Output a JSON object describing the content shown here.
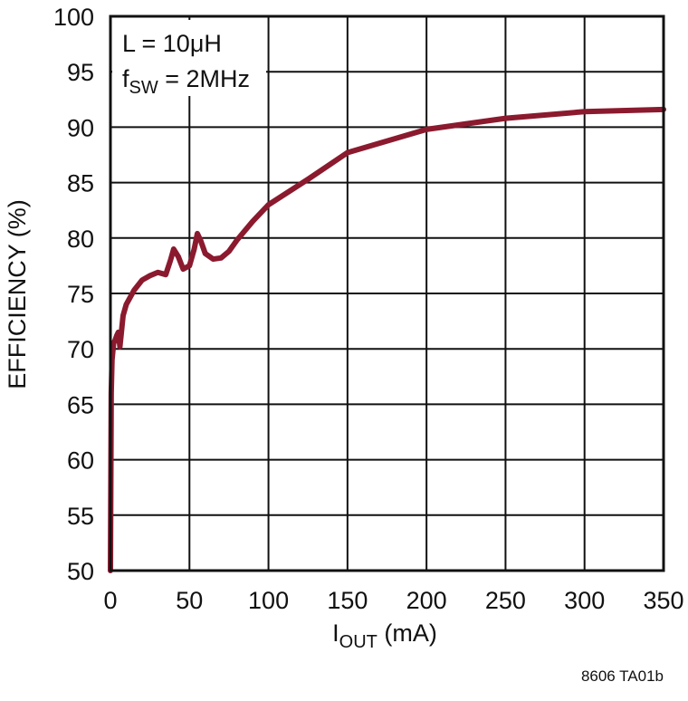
{
  "chart_data": {
    "type": "line",
    "xlabel": {
      "main": "I",
      "sub": "OUT",
      "rest": " (mA)"
    },
    "ylabel": "EFFICIENCY (%)",
    "xlim": [
      0,
      350
    ],
    "ylim": [
      50,
      100
    ],
    "xticks": [
      0,
      50,
      100,
      150,
      200,
      250,
      300,
      350
    ],
    "yticks": [
      50,
      55,
      60,
      65,
      70,
      75,
      80,
      85,
      90,
      95,
      100
    ],
    "grid": true,
    "annotations": {
      "line1": "L = 10μH",
      "line2_main": "f",
      "line2_sub": "SW",
      "line2_rest": " = 2MHz"
    },
    "figure_id": "8606 TA01b",
    "series": [
      {
        "color": "#8b1a2e",
        "x": [
          0,
          0.5,
          1,
          2,
          3,
          4,
          5,
          6,
          8,
          10,
          15,
          20,
          25,
          30,
          35,
          38,
          40,
          43,
          46,
          50,
          53,
          55,
          57,
          60,
          65,
          70,
          75,
          80,
          90,
          100,
          125,
          150,
          200,
          250,
          300,
          350
        ],
        "y": [
          50,
          66,
          69,
          70.5,
          70.8,
          71.2,
          71.5,
          70.2,
          73,
          74,
          75.3,
          76.2,
          76.6,
          76.9,
          76.7,
          78,
          79,
          78.3,
          77.2,
          77.5,
          79,
          80.4,
          79.8,
          78.6,
          78.1,
          78.2,
          78.8,
          79.8,
          81.5,
          83,
          85.3,
          87.7,
          89.8,
          90.8,
          91.4,
          91.6
        ]
      }
    ]
  }
}
